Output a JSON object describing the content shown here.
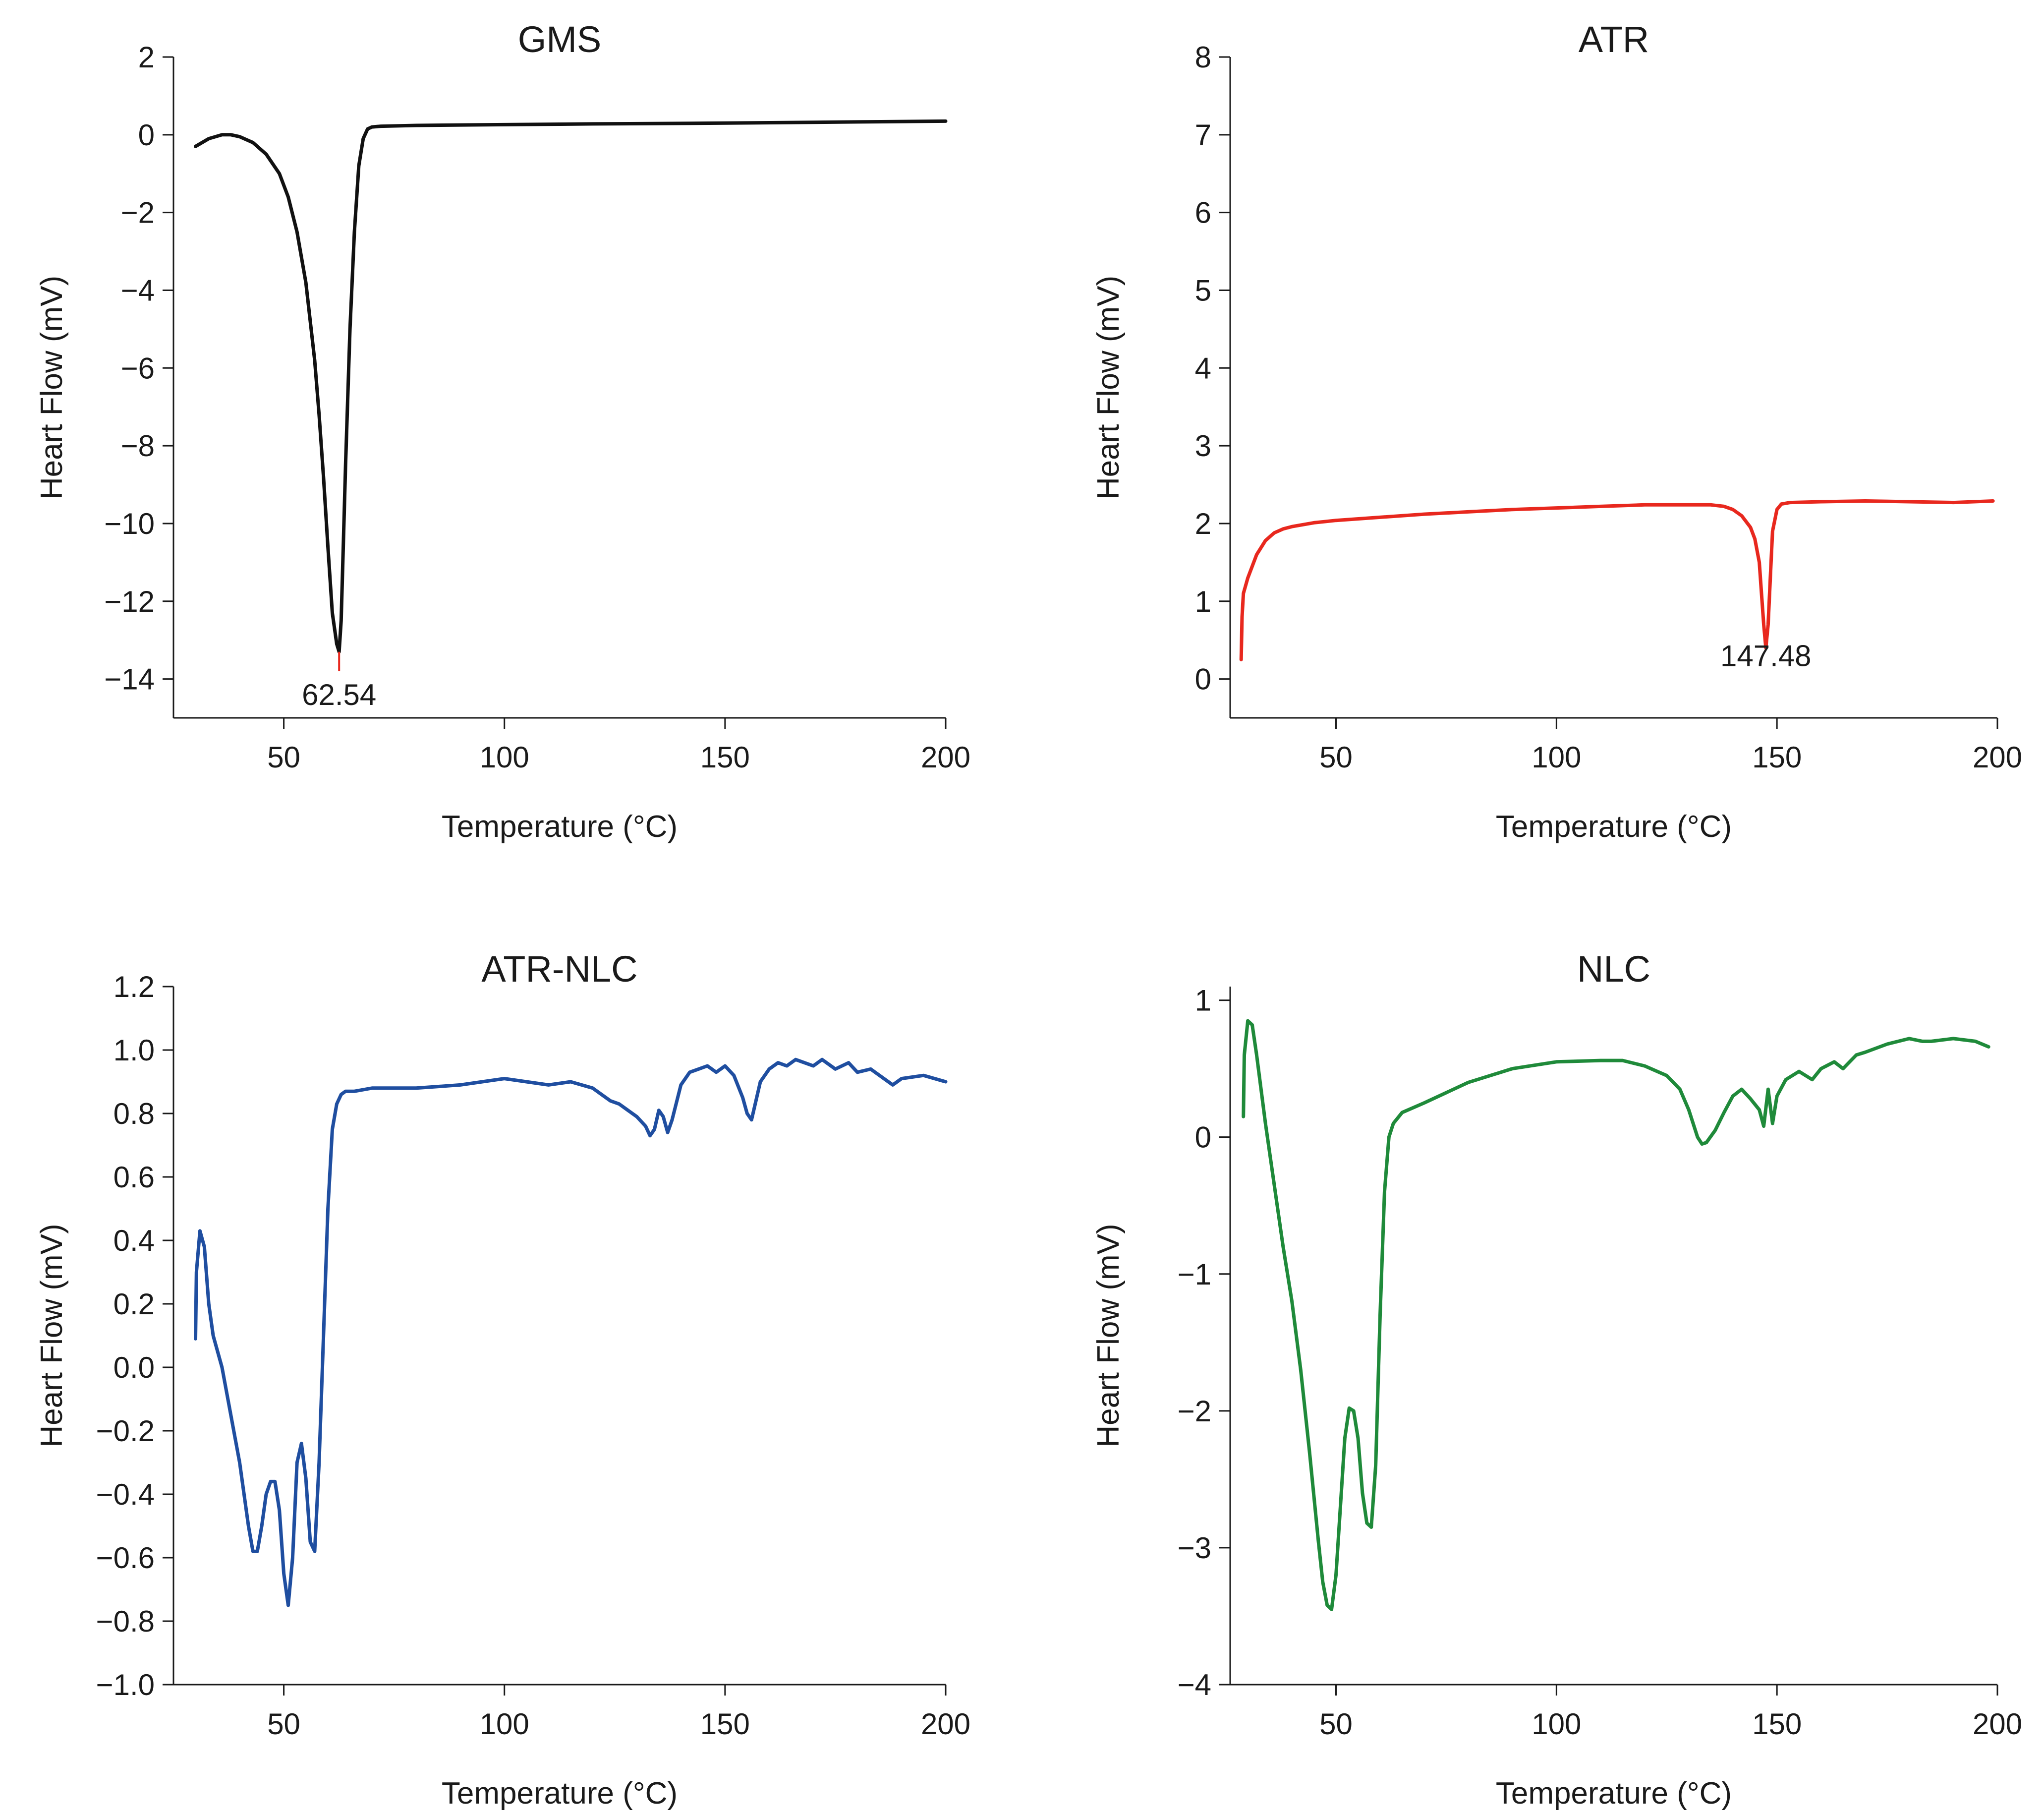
{
  "figure": {
    "xlabel": "Temperature (°C)",
    "ylabel": "Heart Flow (mV)"
  },
  "chart_data": [
    {
      "type": "line",
      "title": "GMS",
      "xlabel": "Temperature (°C)",
      "ylabel": "Heart Flow (mV)",
      "xlim": [
        25,
        200
      ],
      "ylim": [
        -15,
        2
      ],
      "xticks": [
        50,
        100,
        150,
        200
      ],
      "xtick_labels": [
        "50",
        "100",
        "150",
        "200"
      ],
      "yticks": [
        2,
        0,
        -2,
        -4,
        -6,
        -8,
        -10,
        -12,
        -14
      ],
      "ytick_labels": [
        "2",
        "0",
        "−2",
        "−4",
        "−6",
        "−8",
        "−10",
        "−12",
        "−14"
      ],
      "color": "#111111",
      "peak_color": "#e8281e",
      "peak": {
        "x": 62.54,
        "y": -13.8,
        "label": "62.54"
      },
      "series": [
        {
          "name": "GMS",
          "x": [
            30,
            33,
            36,
            38,
            40,
            43,
            46,
            49,
            51,
            53,
            55,
            57,
            58,
            59,
            60,
            61,
            62,
            62.54,
            63,
            63.5,
            64,
            65,
            66,
            67,
            68,
            69,
            70,
            72,
            80,
            100,
            120,
            150,
            180,
            200
          ],
          "y": [
            -0.3,
            -0.1,
            0.0,
            0.0,
            -0.05,
            -0.2,
            -0.5,
            -1.0,
            -1.6,
            -2.5,
            -3.8,
            -5.8,
            -7.2,
            -8.8,
            -10.6,
            -12.3,
            -13.1,
            -13.3,
            -12.5,
            -10.5,
            -8.5,
            -5.0,
            -2.5,
            -0.8,
            -0.1,
            0.15,
            0.2,
            0.22,
            0.24,
            0.26,
            0.28,
            0.3,
            0.33,
            0.35
          ]
        }
      ]
    },
    {
      "type": "line",
      "title": "ATR",
      "xlabel": "Temperature (°C)",
      "ylabel": "Heart Flow (mV)",
      "xlim": [
        26,
        200
      ],
      "ylim": [
        -0.5,
        8
      ],
      "xticks": [
        50,
        100,
        150,
        200
      ],
      "xtick_labels": [
        "50",
        "100",
        "150",
        "200"
      ],
      "yticks": [
        8,
        7,
        6,
        5,
        4,
        3,
        2,
        1,
        0
      ],
      "ytick_labels": [
        "8",
        "7",
        "6",
        "5",
        "4",
        "3",
        "2",
        "1",
        "0"
      ],
      "color": "#e8281e",
      "peak_color": "#e8281e",
      "peak": {
        "x": 147.48,
        "y": 0.6,
        "label": "147.48"
      },
      "series": [
        {
          "name": "ATR",
          "x": [
            28.5,
            28.7,
            29,
            30,
            31,
            32,
            34,
            36,
            38,
            40,
            45,
            50,
            60,
            70,
            80,
            90,
            100,
            110,
            120,
            130,
            135,
            138,
            140,
            142,
            144,
            145,
            146,
            146.5,
            147,
            147.48,
            148,
            148.5,
            149,
            150,
            151,
            153,
            160,
            170,
            180,
            190,
            199
          ],
          "y": [
            0.25,
            0.8,
            1.1,
            1.3,
            1.45,
            1.6,
            1.78,
            1.88,
            1.93,
            1.96,
            2.01,
            2.04,
            2.08,
            2.12,
            2.15,
            2.18,
            2.2,
            2.22,
            2.24,
            2.24,
            2.24,
            2.22,
            2.18,
            2.1,
            1.95,
            1.8,
            1.5,
            1.1,
            0.7,
            0.4,
            0.7,
            1.3,
            1.9,
            2.18,
            2.25,
            2.27,
            2.28,
            2.29,
            2.28,
            2.27,
            2.29
          ]
        }
      ]
    },
    {
      "type": "line",
      "title": "ATR-NLC",
      "xlabel": "Temperature (°C)",
      "ylabel": "Heart Flow (mV)",
      "xlim": [
        25,
        200
      ],
      "ylim": [
        -1.0,
        1.2
      ],
      "xticks": [
        50,
        100,
        150,
        200
      ],
      "xtick_labels": [
        "50",
        "100",
        "150",
        "200"
      ],
      "yticks": [
        1.2,
        1.0,
        0.8,
        0.6,
        0.4,
        0.2,
        0.0,
        -0.2,
        -0.4,
        -0.6,
        -0.8,
        -1.0
      ],
      "ytick_labels": [
        "1.2",
        "1.0",
        "0.8",
        "0.6",
        "0.4",
        "0.2",
        "0.0",
        "−0.2",
        "−0.4",
        "−0.6",
        "−0.8",
        "−1.0"
      ],
      "color": "#1f4ea0",
      "series": [
        {
          "name": "ATR-NLC",
          "x": [
            30,
            30.2,
            31,
            32,
            33,
            34,
            36,
            38,
            40,
            42,
            43,
            44,
            45,
            46,
            47,
            48,
            49,
            50,
            51,
            52,
            53,
            54,
            55,
            56,
            57,
            58,
            59,
            60,
            61,
            62,
            63,
            64,
            66,
            70,
            80,
            90,
            100,
            105,
            110,
            115,
            120,
            122,
            124,
            126,
            128,
            130,
            132,
            133,
            134,
            135,
            136,
            137,
            138,
            140,
            142,
            144,
            146,
            148,
            150,
            152,
            154,
            155,
            156,
            157,
            158,
            160,
            162,
            164,
            166,
            168,
            170,
            172,
            175,
            178,
            180,
            183,
            186,
            188,
            190,
            195,
            200
          ],
          "y": [
            0.09,
            0.3,
            0.43,
            0.38,
            0.2,
            0.1,
            0.0,
            -0.15,
            -0.3,
            -0.5,
            -0.58,
            -0.58,
            -0.5,
            -0.4,
            -0.36,
            -0.36,
            -0.45,
            -0.65,
            -0.75,
            -0.6,
            -0.3,
            -0.24,
            -0.35,
            -0.55,
            -0.58,
            -0.3,
            0.1,
            0.5,
            0.75,
            0.83,
            0.86,
            0.87,
            0.87,
            0.88,
            0.88,
            0.89,
            0.91,
            0.9,
            0.89,
            0.9,
            0.88,
            0.86,
            0.84,
            0.83,
            0.81,
            0.79,
            0.76,
            0.73,
            0.75,
            0.81,
            0.79,
            0.74,
            0.78,
            0.89,
            0.93,
            0.94,
            0.95,
            0.93,
            0.95,
            0.92,
            0.85,
            0.8,
            0.78,
            0.84,
            0.9,
            0.94,
            0.96,
            0.95,
            0.97,
            0.96,
            0.95,
            0.97,
            0.94,
            0.96,
            0.93,
            0.94,
            0.91,
            0.89,
            0.91,
            0.92,
            0.9
          ]
        }
      ]
    },
    {
      "type": "line",
      "title": "NLC",
      "xlabel": "Temperature (°C)",
      "ylabel": "Heart Flow (mV)",
      "xlim": [
        26,
        200
      ],
      "ylim": [
        -4,
        1.1
      ],
      "xticks": [
        50,
        100,
        150,
        200
      ],
      "xtick_labels": [
        "50",
        "100",
        "150",
        "200"
      ],
      "yticks": [
        1,
        0,
        -1,
        -2,
        -3,
        -4
      ],
      "ytick_labels": [
        "1",
        "0",
        "−1",
        "−2",
        "−3",
        "−4"
      ],
      "color": "#1f8a3a",
      "series": [
        {
          "name": "NLC",
          "x": [
            29,
            29.2,
            30,
            31,
            32,
            34,
            36,
            38,
            40,
            42,
            44,
            46,
            47,
            48,
            49,
            50,
            51,
            52,
            53,
            54,
            55,
            56,
            57,
            58,
            59,
            60,
            61,
            62,
            63,
            65,
            70,
            80,
            90,
            100,
            110,
            115,
            120,
            125,
            128,
            130,
            132,
            133,
            134,
            136,
            138,
            140,
            142,
            144,
            146,
            147,
            148,
            149,
            150,
            152,
            155,
            158,
            160,
            163,
            165,
            168,
            170,
            175,
            180,
            183,
            185,
            190,
            195,
            198
          ],
          "y": [
            0.15,
            0.6,
            0.85,
            0.82,
            0.6,
            0.1,
            -0.35,
            -0.8,
            -1.2,
            -1.7,
            -2.3,
            -2.95,
            -3.25,
            -3.42,
            -3.45,
            -3.2,
            -2.7,
            -2.2,
            -1.98,
            -2.0,
            -2.2,
            -2.6,
            -2.82,
            -2.85,
            -2.4,
            -1.3,
            -0.4,
            0.0,
            0.1,
            0.18,
            0.25,
            0.4,
            0.5,
            0.55,
            0.56,
            0.56,
            0.52,
            0.45,
            0.35,
            0.2,
            0.0,
            -0.05,
            -0.04,
            0.05,
            0.18,
            0.3,
            0.35,
            0.28,
            0.2,
            0.08,
            0.35,
            0.1,
            0.3,
            0.42,
            0.48,
            0.42,
            0.5,
            0.55,
            0.5,
            0.6,
            0.62,
            0.68,
            0.72,
            0.7,
            0.7,
            0.72,
            0.7,
            0.66
          ]
        }
      ]
    }
  ]
}
